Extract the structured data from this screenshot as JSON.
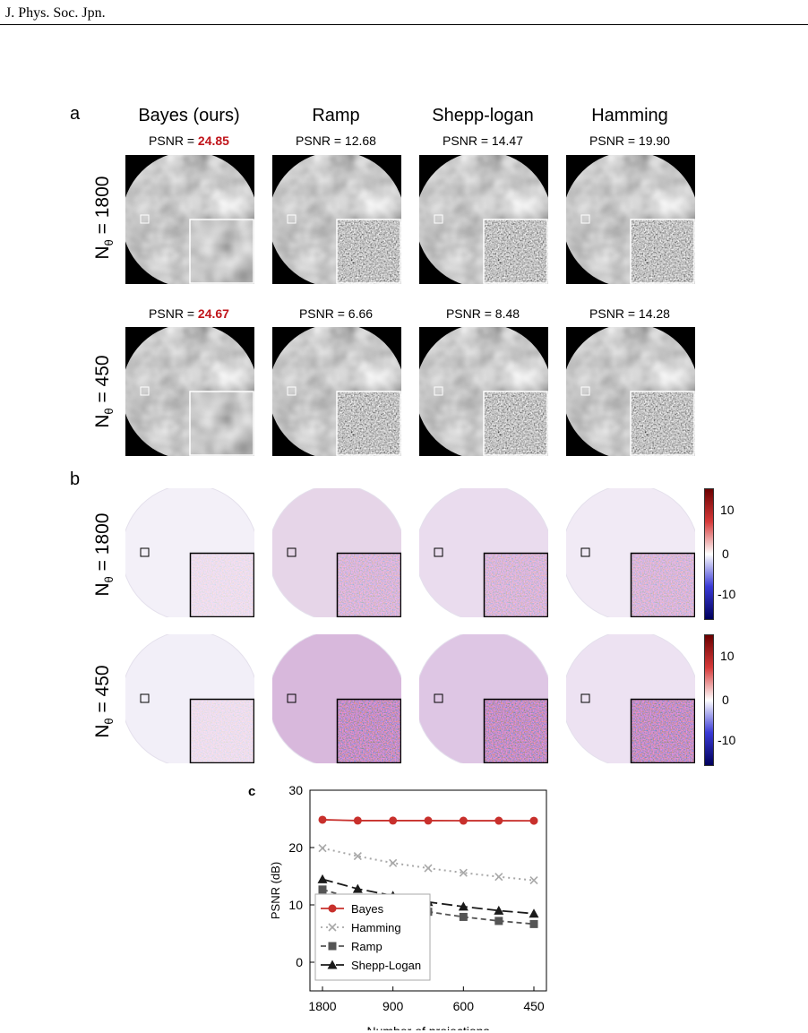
{
  "header": {
    "journal": "J. Phys. Soc. Jpn."
  },
  "panels": {
    "a": {
      "letter": "a"
    },
    "b": {
      "letter": "b"
    },
    "c": {
      "letter": "c"
    }
  },
  "columns": [
    "Bayes (ours)",
    "Ramp",
    "Shepp-logan",
    "Hamming"
  ],
  "rows": [
    {
      "label_prefix": "N",
      "label_sub": "θ",
      "label_suffix": " = 1800",
      "psnr_prefix": "PSNR = ",
      "psnr": [
        "24.85",
        "12.68",
        "14.47",
        "19.90"
      ]
    },
    {
      "label_prefix": "N",
      "label_sub": "θ",
      "label_suffix": " = 450",
      "psnr_prefix": "PSNR = ",
      "psnr": [
        "24.67",
        "6.66",
        "8.48",
        "14.28"
      ]
    }
  ],
  "colorbar": {
    "ticks": [
      "10",
      "0",
      "-10"
    ],
    "colors": [
      "#6b0000",
      "#d63a3a",
      "#ffffff",
      "#3a3ad6",
      "#00005c"
    ]
  },
  "chart_data": {
    "type": "line",
    "xlabel": "Number of projections",
    "ylabel": "PSNR (dB)",
    "x": [
      1800,
      1200,
      900,
      720,
      600,
      514,
      450
    ],
    "x_tick_labels": [
      "1800",
      "900",
      "600",
      "450"
    ],
    "x_scale": "reciprocal",
    "ylim": [
      -5,
      30
    ],
    "y_ticks": [
      "0",
      "10",
      "20",
      "30"
    ],
    "legend_position": "bottom-left",
    "series": [
      {
        "name": "Bayes",
        "color": "#c8302c",
        "style": "solid",
        "marker": "circle",
        "values": [
          24.85,
          24.7,
          24.7,
          24.7,
          24.68,
          24.68,
          24.67
        ]
      },
      {
        "name": "Hamming",
        "color": "#a8a8a8",
        "style": "dotted",
        "marker": "x",
        "values": [
          19.9,
          18.5,
          17.3,
          16.4,
          15.6,
          14.9,
          14.28
        ]
      },
      {
        "name": "Ramp",
        "color": "#555555",
        "style": "dashed",
        "marker": "square",
        "values": [
          12.68,
          10.9,
          9.8,
          8.8,
          7.9,
          7.2,
          6.66
        ]
      },
      {
        "name": "Shepp-Logan",
        "color": "#1a1a1a",
        "style": "longdash",
        "marker": "triangle",
        "values": [
          14.47,
          12.8,
          11.6,
          10.5,
          9.7,
          9.0,
          8.48
        ]
      }
    ]
  }
}
